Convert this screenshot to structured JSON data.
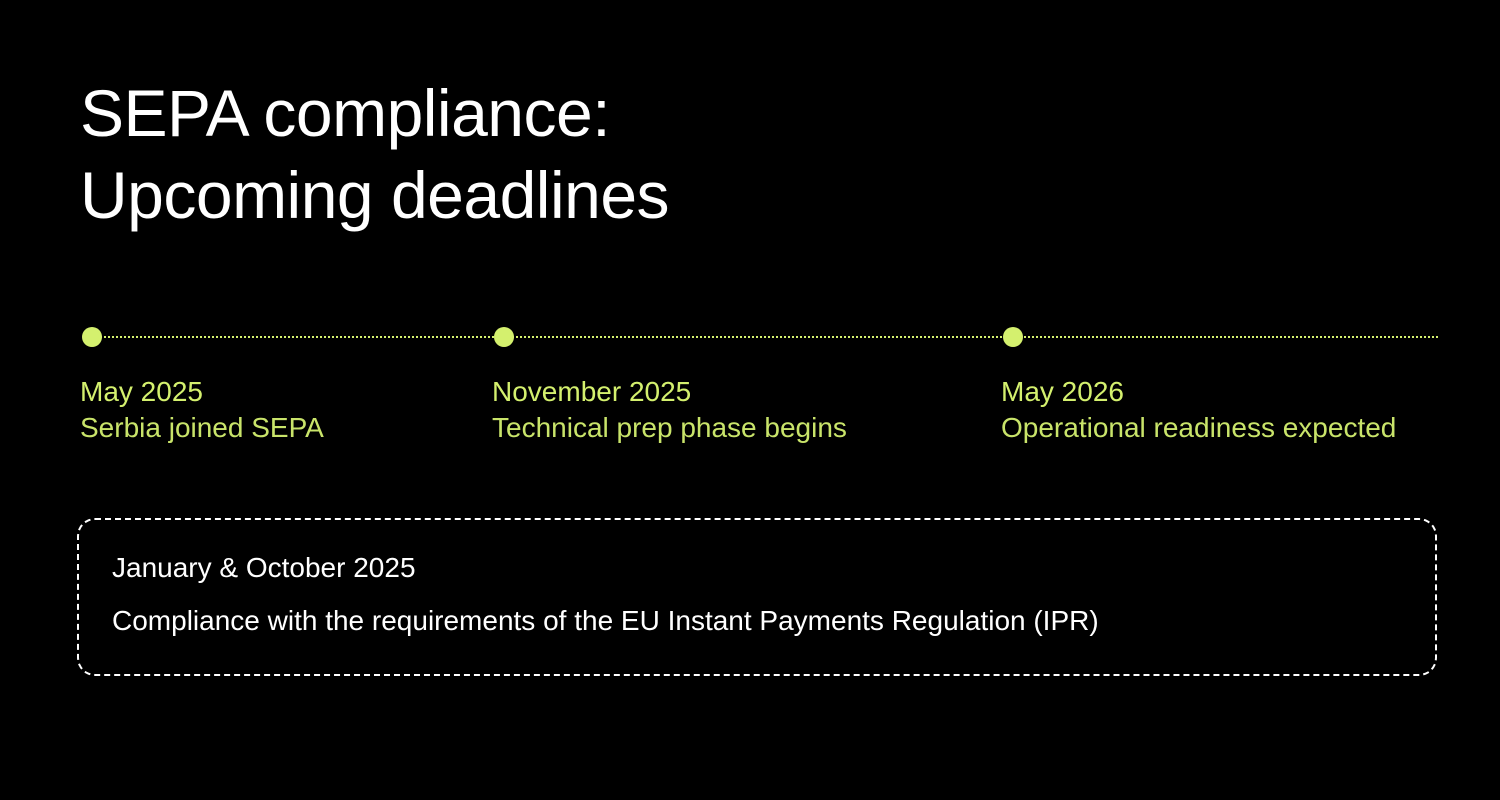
{
  "title": {
    "line1": "SEPA compliance:",
    "line2": "Upcoming deadlines"
  },
  "colors": {
    "background": "#000000",
    "accent": "#d4f06e",
    "text": "#ffffff"
  },
  "timeline": {
    "milestones": [
      {
        "date": "May 2025",
        "description": "Serbia joined SEPA"
      },
      {
        "date": "November 2025",
        "description": "Technical prep phase begins"
      },
      {
        "date": "May 2026",
        "description": "Operational readiness expected"
      }
    ]
  },
  "note": {
    "title": "January & October 2025",
    "text": "Compliance with the requirements of the EU Instant Payments Regulation (IPR)"
  }
}
